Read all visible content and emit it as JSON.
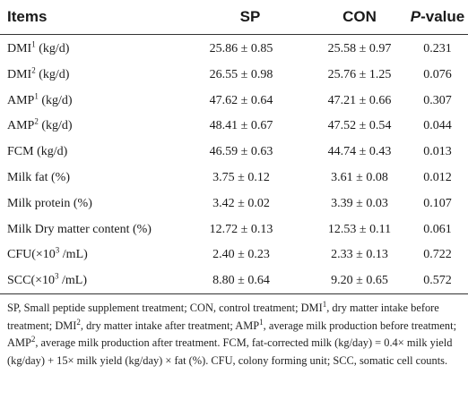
{
  "header": {
    "items": "Items",
    "sp": "SP",
    "con": "CON",
    "p_letter": "P",
    "p_rest": "-value"
  },
  "rows": [
    {
      "label": "DMI",
      "sup": "1",
      "unit": " (kg/d)",
      "sp": "25.86 ± 0.85",
      "con": "25.58 ± 0.97",
      "p": "0.231"
    },
    {
      "label": "DMI",
      "sup": "2",
      "unit": " (kg/d)",
      "sp": "26.55 ± 0.98",
      "con": "25.76 ± 1.25",
      "p": "0.076"
    },
    {
      "label": "AMP",
      "sup": "1",
      "unit": " (kg/d)",
      "sp": "47.62 ± 0.64",
      "con": "47.21 ± 0.66",
      "p": "0.307"
    },
    {
      "label": "AMP",
      "sup": "2",
      "unit": " (kg/d)",
      "sp": "48.41 ± 0.67",
      "con": "47.52 ± 0.54",
      "p": "0.044"
    },
    {
      "label": "FCM (kg/d)",
      "sup": "",
      "unit": "",
      "sp": "46.59 ± 0.63",
      "con": "44.74 ± 0.43",
      "p": "0.013"
    },
    {
      "label": "Milk fat (%)",
      "sup": "",
      "unit": "",
      "sp": "3.75 ± 0.12",
      "con": "3.61 ± 0.08",
      "p": "0.012"
    },
    {
      "label": "Milk protein (%)",
      "sup": "",
      "unit": "",
      "sp": "3.42 ± 0.02",
      "con": "3.39 ± 0.03",
      "p": "0.107"
    },
    {
      "label": "Milk Dry matter content (%)",
      "sup": "",
      "unit": "",
      "sp": "12.72 ± 0.13",
      "con": "12.53 ± 0.11",
      "p": "0.061"
    },
    {
      "label": "CFU(×10",
      "sup": "3",
      "unit": " /mL)",
      "sp": "2.40 ± 0.23",
      "con": "2.33 ± 0.13",
      "p": "0.722"
    },
    {
      "label": "SCC(×10",
      "sup": "3",
      "unit": " /mL)",
      "sp": "8.80 ± 0.64",
      "con": "9.20 ± 0.65",
      "p": "0.572"
    }
  ],
  "footnote": {
    "part1": "SP, Small peptide supplement treatment; CON, control treatment; DMI",
    "sup1": "1",
    "part2": ", dry matter intake before treatment; DMI",
    "sup2": "2",
    "part3": ", dry matter intake after treatment; AMP",
    "sup3": "1",
    "part4": ", average milk production before treatment; AMP",
    "sup4": "2",
    "part5": ", average milk production after treatment. FCM, fat-corrected milk (kg/day) = 0.4× milk yield (kg/day) + 15× milk yield (kg/day) × fat (%). CFU, colony forming unit; SCC, somatic cell counts."
  }
}
